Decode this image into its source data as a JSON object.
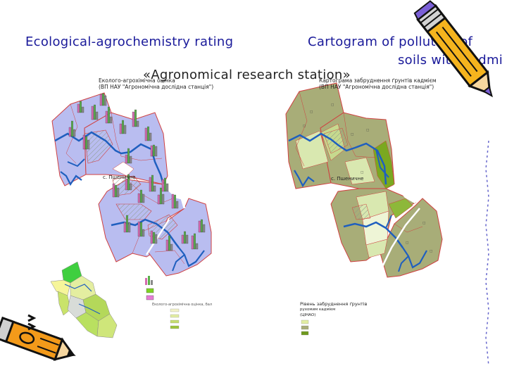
{
  "headings": {
    "left_title": "Ecological-agrochemistry rating",
    "right_title_line1": "Cartogram of pollution of",
    "right_title_line2": "soils with cadmi",
    "station": "«Agronomical research station»"
  },
  "left_map": {
    "title_line1": "Еколого-агрохімічна оцінка",
    "title_line2": "(ВП НАУ \"Агрономічна дослідна станція\")",
    "village": "с. Пшеничне",
    "legend_header": "Еколого-агрохімічна оцінка, бал"
  },
  "right_map": {
    "title_line1": "Картограма забруднення ґрунтів кадмієм",
    "title_line2": "(ВП НАУ \"Агрономічна дослідна станція\")",
    "village": "с. Пшеничне",
    "legend_line1": "Рівень забруднення ґрунтів",
    "legend_line2": "рухомим кадмієм",
    "legend_line3": "(ЦІНАО)"
  },
  "colors": {
    "heading": "#1a1a9a",
    "left_map_fill": "#b9bdf0",
    "right_map_dark": "#a8ad78",
    "right_map_light": "#d9e8b0",
    "right_map_bright": "#7aa820",
    "river": "#1f5fbf",
    "border": "#d04040"
  },
  "icons": [
    "pencil-icon",
    "pencil-icon"
  ]
}
